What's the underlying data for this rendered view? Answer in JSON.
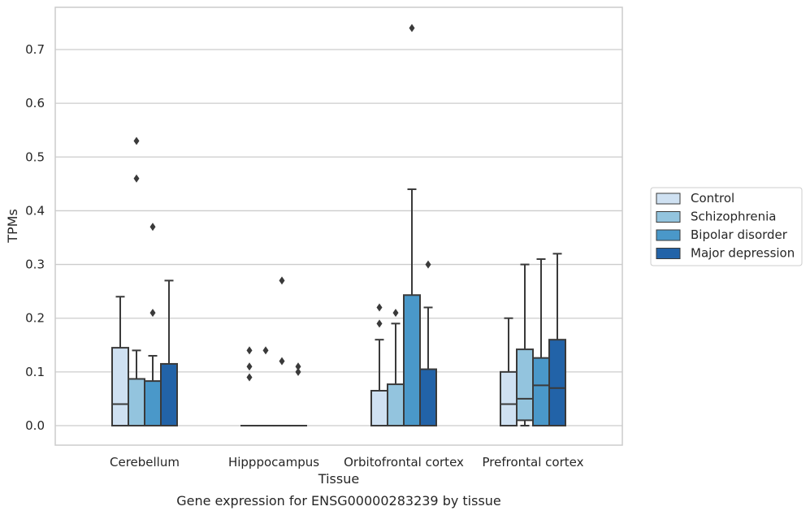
{
  "chart_data": {
    "type": "box",
    "title": "",
    "caption": "Gene expression for ENSG00000283239 by tissue",
    "xlabel": "Tissue",
    "ylabel": "TPMs",
    "ylim": [
      -0.036,
      0.78
    ],
    "yticks": [
      0.0,
      0.1,
      0.2,
      0.3,
      0.4,
      0.5,
      0.6,
      0.7
    ],
    "ytick_labels": [
      "0.0",
      "0.1",
      "0.2",
      "0.3",
      "0.4",
      "0.5",
      "0.6",
      "0.7"
    ],
    "grid": "horizontal",
    "legend_position": "right",
    "categories": [
      "Cerebellum",
      "Hipppocampus",
      "Orbitofrontal cortex",
      "Prefrontal cortex"
    ],
    "series": [
      {
        "name": "Control",
        "color": "#cfe1f2",
        "boxes": [
          {
            "whislo": 0.0,
            "q1": 0.0,
            "med": 0.04,
            "q3": 0.145,
            "whishi": 0.24,
            "fliers": []
          },
          {
            "whislo": 0.0,
            "q1": 0.0,
            "med": 0.0,
            "q3": 0.0,
            "whishi": 0.0,
            "fliers": [
              0.14,
              0.11,
              0.09
            ]
          },
          {
            "whislo": 0.0,
            "q1": 0.0,
            "med": 0.0,
            "q3": 0.065,
            "whishi": 0.16,
            "fliers": [
              0.22,
              0.19
            ]
          },
          {
            "whislo": 0.0,
            "q1": 0.0,
            "med": 0.04,
            "q3": 0.1,
            "whishi": 0.2,
            "fliers": []
          }
        ]
      },
      {
        "name": "Schizophrenia",
        "color": "#93c4de",
        "boxes": [
          {
            "whislo": 0.0,
            "q1": 0.0,
            "med": 0.0,
            "q3": 0.087,
            "whishi": 0.14,
            "fliers": [
              0.53,
              0.46
            ]
          },
          {
            "whislo": 0.0,
            "q1": 0.0,
            "med": 0.0,
            "q3": 0.0,
            "whishi": 0.0,
            "fliers": [
              0.14
            ]
          },
          {
            "whislo": 0.0,
            "q1": 0.0,
            "med": 0.0,
            "q3": 0.077,
            "whishi": 0.19,
            "fliers": [
              0.21
            ]
          },
          {
            "whislo": 0.0,
            "q1": 0.01,
            "med": 0.05,
            "q3": 0.142,
            "whishi": 0.3,
            "fliers": []
          }
        ]
      },
      {
        "name": "Bipolar disorder",
        "color": "#4a98c9",
        "boxes": [
          {
            "whislo": 0.0,
            "q1": 0.0,
            "med": 0.0,
            "q3": 0.083,
            "whishi": 0.13,
            "fliers": [
              0.37,
              0.21
            ]
          },
          {
            "whislo": 0.0,
            "q1": 0.0,
            "med": 0.0,
            "q3": 0.0,
            "whishi": 0.0,
            "fliers": [
              0.27,
              0.12
            ]
          },
          {
            "whislo": 0.0,
            "q1": 0.0,
            "med": 0.0,
            "q3": 0.243,
            "whishi": 0.44,
            "fliers": [
              0.74
            ]
          },
          {
            "whislo": 0.0,
            "q1": 0.0,
            "med": 0.075,
            "q3": 0.126,
            "whishi": 0.31,
            "fliers": []
          }
        ]
      },
      {
        "name": "Major depression",
        "color": "#2263a8",
        "boxes": [
          {
            "whislo": 0.0,
            "q1": 0.0,
            "med": 0.0,
            "q3": 0.115,
            "whishi": 0.27,
            "fliers": []
          },
          {
            "whislo": 0.0,
            "q1": 0.0,
            "med": 0.0,
            "q3": 0.0,
            "whishi": 0.0,
            "fliers": [
              0.11,
              0.1
            ]
          },
          {
            "whislo": 0.0,
            "q1": 0.0,
            "med": 0.0,
            "q3": 0.105,
            "whishi": 0.22,
            "fliers": [
              0.3
            ]
          },
          {
            "whislo": 0.0,
            "q1": 0.0,
            "med": 0.07,
            "q3": 0.16,
            "whishi": 0.32,
            "fliers": []
          }
        ]
      }
    ]
  }
}
